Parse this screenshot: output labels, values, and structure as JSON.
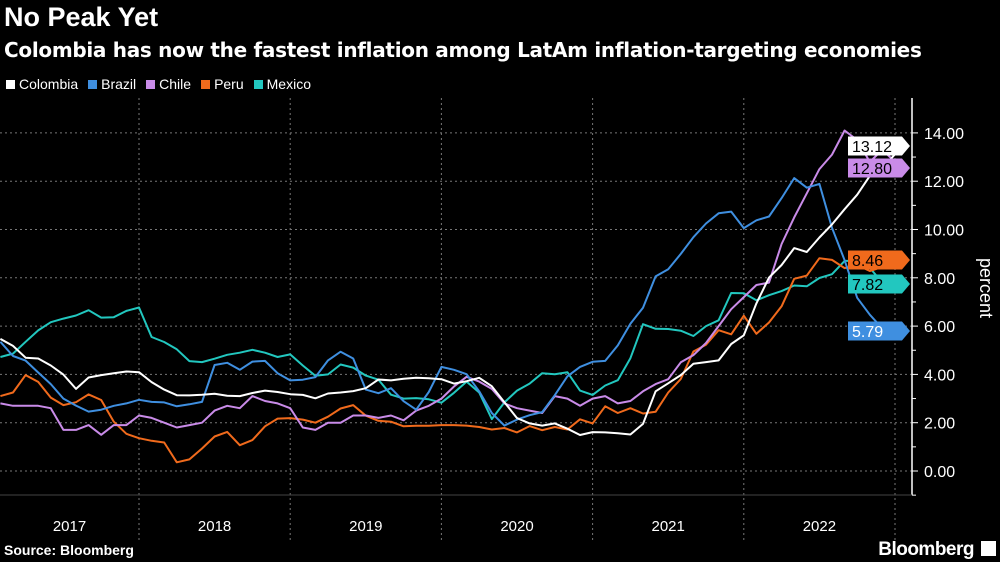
{
  "header": {
    "title": "No Peak Yet",
    "subtitle": "Colombia has now the fastest inflation among LatAm inflation-targeting economies"
  },
  "footer": {
    "source": "Source: Bloomberg",
    "logo": "Bloomberg"
  },
  "chart_data": {
    "type": "line",
    "title": "No Peak Yet",
    "subtitle": "Colombia has now the fastest inflation among LatAm inflation-targeting economies",
    "xlabel": "",
    "ylabel": "percent",
    "x_start": "2017-01",
    "x_frequency": "monthly",
    "x_tick_labels": [
      "2017",
      "2018",
      "2019",
      "2020",
      "2021",
      "2022"
    ],
    "ylim": [
      -1,
      15
    ],
    "y_ticks": [
      "0.00",
      "2.00",
      "4.00",
      "6.00",
      "8.00",
      "10.00",
      "12.00",
      "14.00"
    ],
    "y_axis_position": "right",
    "grid": true,
    "legend_position": "top-left",
    "series": [
      {
        "name": "Colombia",
        "color": "#ffffff",
        "last_label": "13.12",
        "values": [
          5.47,
          5.18,
          4.69,
          4.66,
          4.37,
          3.99,
          3.4,
          3.87,
          3.97,
          4.05,
          4.12,
          4.09,
          3.68,
          3.37,
          3.14,
          3.13,
          3.16,
          3.2,
          3.12,
          3.1,
          3.23,
          3.33,
          3.27,
          3.18,
          3.15,
          3.01,
          3.21,
          3.25,
          3.31,
          3.43,
          3.79,
          3.75,
          3.82,
          3.86,
          3.84,
          3.8,
          3.62,
          3.72,
          3.86,
          3.51,
          2.85,
          2.19,
          1.97,
          1.88,
          1.97,
          1.75,
          1.49,
          1.61,
          1.6,
          1.56,
          1.51,
          1.95,
          3.3,
          3.63,
          3.97,
          4.44,
          4.51,
          4.58,
          5.26,
          5.62,
          6.94,
          8.01,
          8.53,
          9.23,
          9.07,
          9.67,
          10.21,
          10.84,
          11.44,
          12.22,
          12.53,
          13.12
        ]
      },
      {
        "name": "Brazil",
        "color": "#3f8fe0",
        "last_label": "5.79",
        "values": [
          5.35,
          4.76,
          4.57,
          4.08,
          3.6,
          3.0,
          2.71,
          2.46,
          2.54,
          2.7,
          2.8,
          2.95,
          2.86,
          2.84,
          2.68,
          2.76,
          2.86,
          4.39,
          4.48,
          4.19,
          4.53,
          4.56,
          4.05,
          3.75,
          3.78,
          3.89,
          4.58,
          4.94,
          4.66,
          3.37,
          3.22,
          3.43,
          2.89,
          2.54,
          3.27,
          4.31,
          4.19,
          4.01,
          3.3,
          2.4,
          1.88,
          2.13,
          2.31,
          2.44,
          3.14,
          3.92,
          4.31,
          4.52,
          4.56,
          5.2,
          6.1,
          6.76,
          8.06,
          8.35,
          8.99,
          9.68,
          10.25,
          10.67,
          10.74,
          10.06,
          10.38,
          10.54,
          11.3,
          12.13,
          11.73,
          11.89,
          10.07,
          8.73,
          7.17,
          6.47,
          5.9,
          5.79
        ]
      },
      {
        "name": "Chile",
        "color": "#c98be8",
        "last_label": "12.80",
        "values": [
          2.8,
          2.7,
          2.7,
          2.7,
          2.6,
          1.7,
          1.7,
          1.9,
          1.5,
          1.9,
          1.9,
          2.3,
          2.2,
          2.0,
          1.8,
          1.9,
          2.0,
          2.5,
          2.7,
          2.6,
          3.1,
          2.9,
          2.8,
          2.6,
          1.8,
          1.7,
          2.0,
          2.0,
          2.3,
          2.3,
          2.2,
          2.3,
          2.1,
          2.5,
          2.7,
          3.0,
          3.5,
          3.9,
          3.7,
          3.4,
          2.8,
          2.6,
          2.5,
          2.4,
          3.1,
          3.0,
          2.7,
          3.0,
          3.1,
          2.8,
          2.9,
          3.3,
          3.6,
          3.8,
          4.5,
          4.8,
          5.3,
          6.0,
          6.7,
          7.2,
          7.7,
          7.8,
          9.4,
          10.5,
          11.5,
          12.5,
          13.1,
          14.1,
          13.7,
          12.8,
          13.3,
          12.8
        ]
      },
      {
        "name": "Peru",
        "color": "#f06a1c",
        "last_label": "8.46",
        "values": [
          3.1,
          3.25,
          3.97,
          3.69,
          3.04,
          2.73,
          2.85,
          3.17,
          2.94,
          2.04,
          1.54,
          1.36,
          1.25,
          1.18,
          0.36,
          0.48,
          0.93,
          1.43,
          1.62,
          1.07,
          1.28,
          1.85,
          2.17,
          2.19,
          2.13,
          2.0,
          2.25,
          2.59,
          2.73,
          2.29,
          2.08,
          2.04,
          1.85,
          1.87,
          1.87,
          1.9,
          1.9,
          1.88,
          1.82,
          1.72,
          1.78,
          1.6,
          1.86,
          1.69,
          1.82,
          1.72,
          2.14,
          1.97,
          2.68,
          2.4,
          2.6,
          2.38,
          2.45,
          3.25,
          3.81,
          4.95,
          5.23,
          5.83,
          5.66,
          6.43,
          5.68,
          6.15,
          6.82,
          7.96,
          8.09,
          8.81,
          8.74,
          8.4,
          8.53,
          8.28,
          8.45,
          8.46
        ]
      },
      {
        "name": "Mexico",
        "color": "#22c7bf",
        "last_label": "7.82",
        "values": [
          4.72,
          4.86,
          5.35,
          5.82,
          6.16,
          6.31,
          6.44,
          6.66,
          6.35,
          6.37,
          6.63,
          6.77,
          5.55,
          5.34,
          5.04,
          4.55,
          4.51,
          4.65,
          4.81,
          4.9,
          5.02,
          4.9,
          4.72,
          4.83,
          4.37,
          3.94,
          4.0,
          4.41,
          4.28,
          3.95,
          3.78,
          3.16,
          3.0,
          3.02,
          2.97,
          2.83,
          3.24,
          3.7,
          3.25,
          2.15,
          2.84,
          3.33,
          3.62,
          4.05,
          4.01,
          4.09,
          3.33,
          3.15,
          3.54,
          3.76,
          4.67,
          6.08,
          5.89,
          5.88,
          5.81,
          5.59,
          6.0,
          6.24,
          7.37,
          7.36,
          7.07,
          7.28,
          7.45,
          7.68,
          7.65,
          7.99,
          8.15,
          8.7,
          8.7,
          8.41,
          7.8,
          7.82
        ]
      }
    ]
  }
}
